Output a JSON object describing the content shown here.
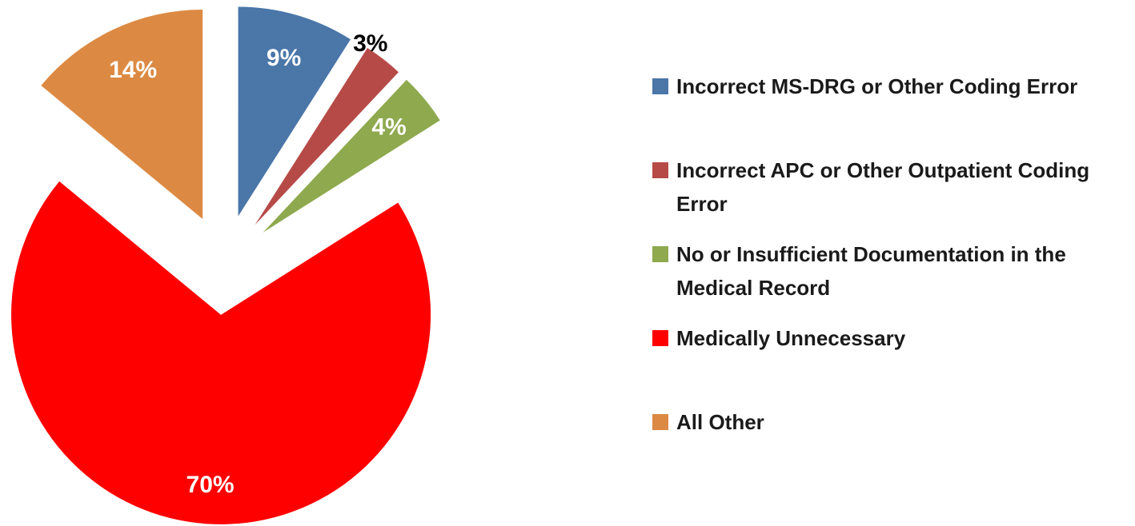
{
  "chart_data": {
    "type": "pie",
    "categories": [
      "Incorrect MS-DRG or Other Coding Error",
      "Incorrect APC or Other Outpatient Coding Error",
      "No or Insufficient Documentation in the Medical Record",
      "Medically Unnecessary",
      "All Other"
    ],
    "values": [
      9,
      3,
      4,
      70,
      14
    ],
    "value_labels": [
      "9%",
      "3%",
      "4%",
      "70%",
      "14%"
    ],
    "colors": [
      "#4a76a8",
      "#b64a47",
      "#8ea94e",
      "#ff0000",
      "#dc8a43"
    ],
    "legend": "right"
  }
}
